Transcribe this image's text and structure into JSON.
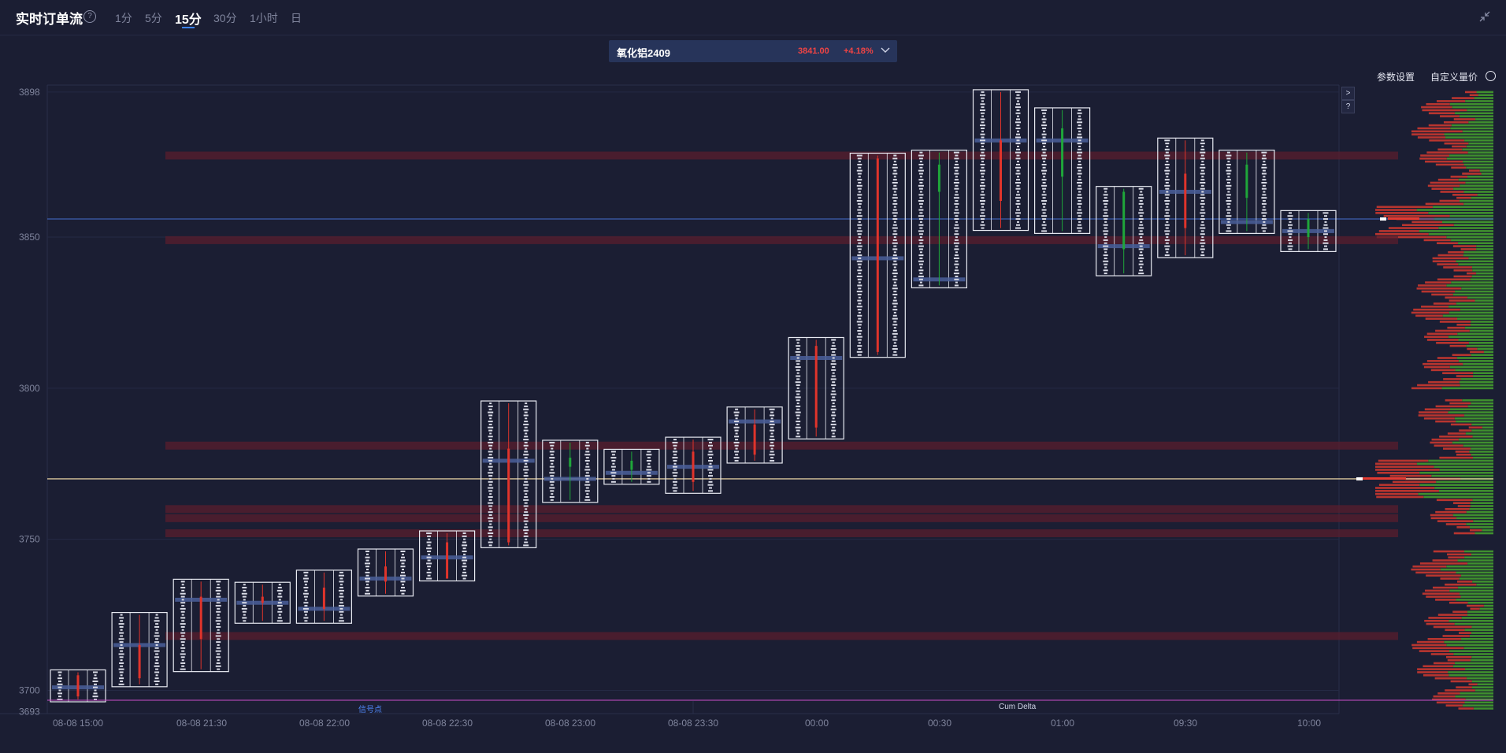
{
  "header": {
    "title": "实时订单流",
    "help": "?",
    "timeframes": [
      "1分",
      "5分",
      "15分",
      "30分",
      "1小时",
      "日"
    ],
    "active_timeframe": "15分"
  },
  "symbol": {
    "name": "氧化铝2409",
    "price": "3841.00",
    "change": "+4.18%"
  },
  "toolbar": {
    "params_label": "参数设置",
    "custom_label": "自定义量价"
  },
  "controls": {
    "next": ">",
    "help": "?"
  },
  "labels": {
    "signal": "信号点",
    "cum_delta": "Cum Delta"
  },
  "colors": {
    "background": "#1b1e33",
    "up": "#ef4444",
    "down": "#22c55e",
    "hline_blue": "#3d5fb0",
    "hline_gold": "#d8c49a",
    "accent": "#3b82f6"
  },
  "chart_data": {
    "type": "footprint",
    "y_ticks": [
      "3898",
      "3850",
      "3800",
      "3750",
      "3700",
      "3693"
    ],
    "y_values": [
      3898,
      3850,
      3800,
      3750,
      3700,
      3693
    ],
    "ylim": [
      3693,
      3898
    ],
    "x_ticks": [
      "08-08 15:00",
      "08-08 21:30",
      "08-08 22:00",
      "08-08 22:30",
      "08-08 23:00",
      "08-08 23:30",
      "00:00",
      "00:30",
      "01:00",
      "09:30",
      "10:00"
    ],
    "horizontal_lines": [
      {
        "price": 3856,
        "color": "#3d5fb0"
      },
      {
        "price": 3770,
        "color": "#d8c49a"
      }
    ],
    "zones": [
      {
        "price": 3718
      },
      {
        "price": 3760
      },
      {
        "price": 3757
      },
      {
        "price": 3752
      },
      {
        "price": 3781
      },
      {
        "price": 3877
      },
      {
        "price": 3849
      }
    ],
    "candles": [
      {
        "high": 3706,
        "low": 3697,
        "open": 3698,
        "close": 3705,
        "poc": 3701,
        "dir": "up"
      },
      {
        "high": 3725,
        "low": 3702,
        "open": 3704,
        "close": 3715,
        "poc": 3715,
        "dir": "up"
      },
      {
        "high": 3736,
        "low": 3707,
        "open": 3717,
        "close": 3731,
        "poc": 3730,
        "dir": "up"
      },
      {
        "high": 3735,
        "low": 3723,
        "open": 3729,
        "close": 3731,
        "poc": 3729,
        "dir": "up"
      },
      {
        "high": 3739,
        "low": 3723,
        "open": 3727,
        "close": 3734,
        "poc": 3727,
        "dir": "up"
      },
      {
        "high": 3746,
        "low": 3732,
        "open": 3736,
        "close": 3741,
        "poc": 3737,
        "dir": "up"
      },
      {
        "high": 3752,
        "low": 3737,
        "open": 3737,
        "close": 3749,
        "poc": 3744,
        "dir": "up"
      },
      {
        "high": 3795,
        "low": 3748,
        "open": 3749,
        "close": 3780,
        "poc": 3776,
        "dir": "up"
      },
      {
        "high": 3782,
        "low": 3763,
        "open": 3774,
        "close": 3777,
        "poc": 3770,
        "dir": "down"
      },
      {
        "high": 3779,
        "low": 3769,
        "open": 3773,
        "close": 3776,
        "poc": 3772,
        "dir": "down"
      },
      {
        "high": 3783,
        "low": 3766,
        "open": 3769,
        "close": 3779,
        "poc": 3774,
        "dir": "up"
      },
      {
        "high": 3793,
        "low": 3776,
        "open": 3778,
        "close": 3788,
        "poc": 3789,
        "dir": "up"
      },
      {
        "high": 3816,
        "low": 3784,
        "open": 3787,
        "close": 3814,
        "poc": 3810,
        "dir": "up"
      },
      {
        "high": 3877,
        "low": 3811,
        "open": 3812,
        "close": 3876,
        "poc": 3843,
        "dir": "up"
      },
      {
        "high": 3878,
        "low": 3834,
        "open": 3874,
        "close": 3865,
        "poc": 3836,
        "dir": "down"
      },
      {
        "high": 3898,
        "low": 3853,
        "open": 3862,
        "close": 3882,
        "poc": 3882,
        "dir": "up"
      },
      {
        "high": 3892,
        "low": 3852,
        "open": 3886,
        "close": 3870,
        "poc": 3882,
        "dir": "down"
      },
      {
        "high": 3866,
        "low": 3838,
        "open": 3865,
        "close": 3846,
        "poc": 3847,
        "dir": "down"
      },
      {
        "high": 3882,
        "low": 3844,
        "open": 3871,
        "close": 3853,
        "poc": 3865,
        "dir": "up"
      },
      {
        "high": 3878,
        "low": 3852,
        "open": 3874,
        "close": 3863,
        "poc": 3855,
        "dir": "down"
      },
      {
        "high": 3858,
        "low": 3846,
        "open": 3850,
        "close": 3856,
        "poc": 3852,
        "dir": "down"
      }
    ]
  }
}
